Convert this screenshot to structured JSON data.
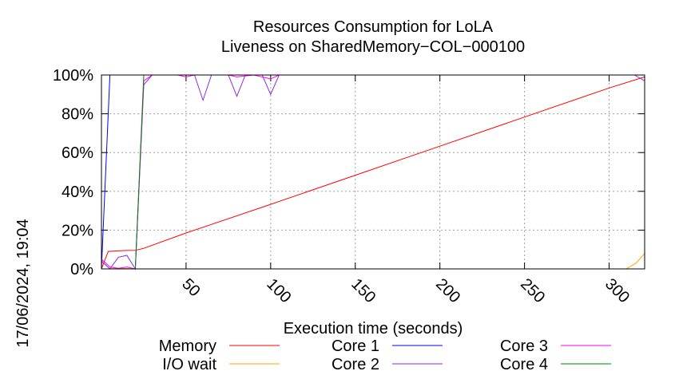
{
  "chart_data": {
    "type": "line",
    "title_line1": "Resources Consumption for LoLA",
    "title_line2": "Liveness on SharedMemory−COL−000100",
    "xlabel": "Execution time (seconds)",
    "ylabel": "",
    "side_label": "17/06/2024, 19:04",
    "xlim": [
      0,
      321
    ],
    "ylim": [
      0,
      100
    ],
    "x_ticks": [
      50,
      100,
      150,
      200,
      250,
      300
    ],
    "y_ticks": [
      0,
      20,
      40,
      60,
      80,
      100
    ],
    "y_tick_labels": [
      "0%",
      "20%",
      "40%",
      "60%",
      "80%",
      "100%"
    ],
    "grid": true,
    "legend_position": "bottom",
    "series": [
      {
        "name": "Memory",
        "color": "#ff0000",
        "points": [
          [
            0,
            0
          ],
          [
            4,
            9
          ],
          [
            10,
            9.3
          ],
          [
            15,
            9.5
          ],
          [
            20,
            9.6
          ],
          [
            25,
            10.6
          ],
          [
            50,
            18.5
          ],
          [
            100,
            33.3
          ],
          [
            150,
            48.3
          ],
          [
            200,
            63.3
          ],
          [
            250,
            78.3
          ],
          [
            300,
            93.3
          ],
          [
            321,
            99
          ]
        ]
      },
      {
        "name": "I/O wait",
        "color": "#ffa500",
        "points": [
          [
            0,
            0
          ],
          [
            5,
            0
          ],
          [
            10,
            0.3
          ],
          [
            15,
            0.2
          ],
          [
            20,
            0
          ],
          [
            100,
            0
          ],
          [
            200,
            0
          ],
          [
            310,
            0
          ],
          [
            316,
            3
          ],
          [
            321,
            8
          ]
        ]
      },
      {
        "name": "Core 1",
        "color": "#0000ff",
        "points": [
          [
            0,
            0
          ],
          [
            5,
            100
          ],
          [
            50,
            100
          ],
          [
            100,
            100
          ],
          [
            200,
            100
          ],
          [
            300,
            100
          ],
          [
            321,
            100
          ]
        ]
      },
      {
        "name": "Core 2",
        "color": "#8a2be2",
        "points": [
          [
            0,
            4
          ],
          [
            5,
            0
          ],
          [
            10,
            6
          ],
          [
            15,
            7
          ],
          [
            20,
            0
          ],
          [
            25,
            95
          ],
          [
            30,
            100
          ],
          [
            40,
            100
          ],
          [
            45,
            100
          ],
          [
            50,
            100
          ],
          [
            55,
            100
          ],
          [
            60,
            87
          ],
          [
            65,
            100
          ],
          [
            75,
            100
          ],
          [
            80,
            89
          ],
          [
            85,
            100
          ],
          [
            95,
            100
          ],
          [
            100,
            90
          ],
          [
            105,
            100
          ],
          [
            110,
            100
          ],
          [
            300,
            100
          ],
          [
            315,
            100
          ],
          [
            321,
            97
          ]
        ]
      },
      {
        "name": "Core 3",
        "color": "#ff00ff",
        "points": [
          [
            0,
            5
          ],
          [
            5,
            1
          ],
          [
            10,
            0.3
          ],
          [
            15,
            1
          ],
          [
            20,
            0
          ],
          [
            25,
            97
          ],
          [
            30,
            100
          ],
          [
            40,
            100
          ],
          [
            45,
            100
          ],
          [
            50,
            99
          ],
          [
            55,
            100
          ],
          [
            75,
            100
          ],
          [
            80,
            99
          ],
          [
            90,
            100
          ],
          [
            100,
            98
          ],
          [
            105,
            100
          ],
          [
            110,
            100
          ],
          [
            300,
            100
          ],
          [
            321,
            100
          ]
        ]
      },
      {
        "name": "Core 4",
        "color": "#008000",
        "points": [
          [
            0,
            0
          ],
          [
            20,
            0
          ],
          [
            25,
            100
          ],
          [
            50,
            100
          ],
          [
            100,
            100
          ],
          [
            200,
            100
          ],
          [
            300,
            100
          ],
          [
            321,
            100
          ]
        ]
      }
    ]
  }
}
